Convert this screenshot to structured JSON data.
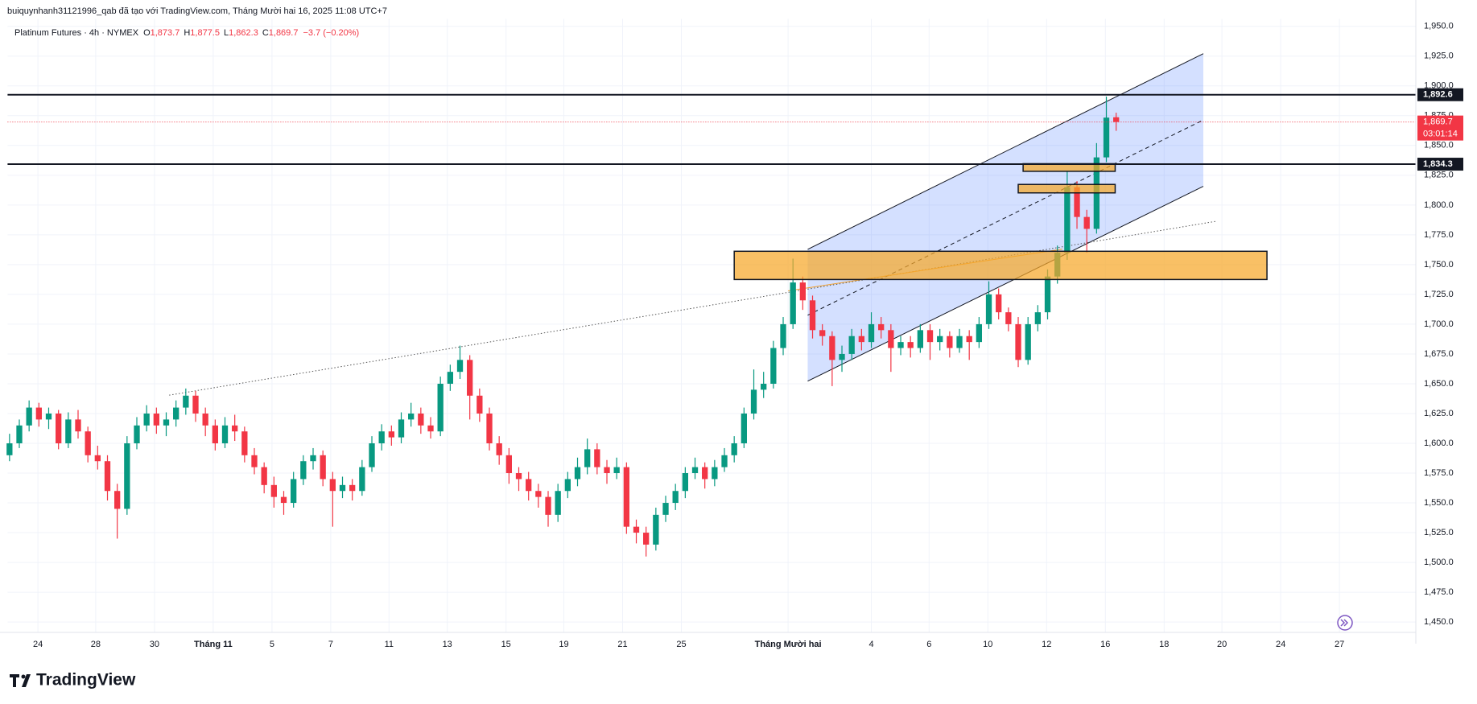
{
  "header": {
    "attribution": "buiquynhanh31121996_qab đã tạo với TradingView.com, Tháng Mười hai 16, 2025 11:08 UTC+7"
  },
  "footer": {
    "brand": "TradingView"
  },
  "chart_data": {
    "type": "candlestick",
    "legend": {
      "symbol": "Platinum Futures · 4h · NYMEX",
      "fields": [
        {
          "key": "O",
          "value": "1,873.7"
        },
        {
          "key": "H",
          "value": "1,877.5"
        },
        {
          "key": "L",
          "value": "1,862.3"
        },
        {
          "key": "C",
          "value": "1,869.7"
        }
      ],
      "change": "−3.7 (−0.20%)"
    },
    "up_color": "#089981",
    "down_color": "#f23645",
    "xlim": [
      -0.2,
      143.6
    ],
    "xticks": [
      {
        "value": 2.9,
        "label": "24"
      },
      {
        "value": 8.8,
        "label": "28"
      },
      {
        "value": 14.8,
        "label": "30"
      },
      {
        "value": 20.8,
        "label": "Tháng 11"
      },
      {
        "value": 26.8,
        "label": "5"
      },
      {
        "value": 32.8,
        "label": "7"
      },
      {
        "value": 38.75,
        "label": "11"
      },
      {
        "value": 44.7,
        "label": "13"
      },
      {
        "value": 50.7,
        "label": "15"
      },
      {
        "value": 56.6,
        "label": "19"
      },
      {
        "value": 62.6,
        "label": "21"
      },
      {
        "value": 68.6,
        "label": "25"
      },
      {
        "value": 79.5,
        "label": "Tháng Mười hai"
      },
      {
        "value": 88,
        "label": "4"
      },
      {
        "value": 93.9,
        "label": "6"
      },
      {
        "value": 99.9,
        "label": "10"
      },
      {
        "value": 105.9,
        "label": "12"
      },
      {
        "value": 111.9,
        "label": "16"
      },
      {
        "value": 117.9,
        "label": "18"
      },
      {
        "value": 123.8,
        "label": "20"
      },
      {
        "value": 129.8,
        "label": "24"
      },
      {
        "value": 135.8,
        "label": "27"
      }
    ],
    "ylim": [
      1441.3,
      1956.3
    ],
    "yticks": [
      {
        "value": 1450,
        "label": "1,450.0"
      },
      {
        "value": 1475,
        "label": "1,475.0"
      },
      {
        "value": 1500,
        "label": "1,500.0"
      },
      {
        "value": 1525,
        "label": "1,525.0"
      },
      {
        "value": 1550,
        "label": "1,550.0"
      },
      {
        "value": 1575,
        "label": "1,575.0"
      },
      {
        "value": 1600,
        "label": "1,600.0"
      },
      {
        "value": 1625,
        "label": "1,625.0"
      },
      {
        "value": 1650,
        "label": "1,650.0"
      },
      {
        "value": 1675,
        "label": "1,675.0"
      },
      {
        "value": 1700,
        "label": "1,700.0"
      },
      {
        "value": 1725,
        "label": "1,725.0"
      },
      {
        "value": 1750,
        "label": "1,750.0"
      },
      {
        "value": 1775,
        "label": "1,775.0"
      },
      {
        "value": 1800,
        "label": "1,800.0"
      },
      {
        "value": 1825,
        "label": "1,825.0"
      },
      {
        "value": 1850,
        "label": "1,850.0"
      },
      {
        "value": 1875,
        "label": "1,875.0"
      },
      {
        "value": 1900,
        "label": "1,900.0"
      },
      {
        "value": 1925,
        "label": "1,925.0"
      },
      {
        "value": 1950,
        "label": "1,950.0"
      }
    ],
    "grid": true,
    "ohlc": [
      [
        1590,
        1608,
        1585,
        1600
      ],
      [
        1600,
        1620,
        1596,
        1615
      ],
      [
        1615,
        1636,
        1610,
        1630
      ],
      [
        1630,
        1634,
        1614,
        1620
      ],
      [
        1620,
        1630,
        1612,
        1625
      ],
      [
        1625,
        1628,
        1595,
        1600
      ],
      [
        1600,
        1626,
        1596,
        1620
      ],
      [
        1620,
        1628,
        1604,
        1610
      ],
      [
        1610,
        1614,
        1584,
        1590
      ],
      [
        1590,
        1598,
        1578,
        1585
      ],
      [
        1585,
        1590,
        1552,
        1560
      ],
      [
        1560,
        1566,
        1520,
        1545
      ],
      [
        1545,
        1606,
        1540,
        1600
      ],
      [
        1600,
        1622,
        1595,
        1615
      ],
      [
        1615,
        1632,
        1610,
        1625
      ],
      [
        1625,
        1630,
        1608,
        1615
      ],
      [
        1615,
        1626,
        1606,
        1620
      ],
      [
        1620,
        1636,
        1614,
        1630
      ],
      [
        1630,
        1646,
        1624,
        1640
      ],
      [
        1640,
        1644,
        1618,
        1625
      ],
      [
        1625,
        1630,
        1606,
        1615
      ],
      [
        1615,
        1620,
        1594,
        1600
      ],
      [
        1600,
        1622,
        1596,
        1615
      ],
      [
        1615,
        1624,
        1602,
        1610
      ],
      [
        1610,
        1614,
        1584,
        1590
      ],
      [
        1590,
        1596,
        1574,
        1580
      ],
      [
        1580,
        1584,
        1558,
        1565
      ],
      [
        1565,
        1572,
        1546,
        1555
      ],
      [
        1555,
        1560,
        1540,
        1550
      ],
      [
        1550,
        1576,
        1546,
        1570
      ],
      [
        1570,
        1590,
        1565,
        1585
      ],
      [
        1585,
        1596,
        1578,
        1590
      ],
      [
        1590,
        1594,
        1564,
        1570
      ],
      [
        1570,
        1576,
        1530,
        1560
      ],
      [
        1560,
        1572,
        1554,
        1565
      ],
      [
        1565,
        1570,
        1552,
        1560
      ],
      [
        1560,
        1586,
        1556,
        1580
      ],
      [
        1580,
        1606,
        1576,
        1600
      ],
      [
        1600,
        1616,
        1594,
        1610
      ],
      [
        1610,
        1615,
        1598,
        1605
      ],
      [
        1605,
        1626,
        1600,
        1620
      ],
      [
        1620,
        1634,
        1614,
        1625
      ],
      [
        1625,
        1630,
        1608,
        1615
      ],
      [
        1615,
        1622,
        1604,
        1610
      ],
      [
        1610,
        1656,
        1606,
        1650
      ],
      [
        1650,
        1666,
        1644,
        1660
      ],
      [
        1660,
        1682,
        1654,
        1670
      ],
      [
        1670,
        1674,
        1620,
        1640
      ],
      [
        1640,
        1646,
        1618,
        1625
      ],
      [
        1625,
        1630,
        1594,
        1600
      ],
      [
        1600,
        1606,
        1582,
        1590
      ],
      [
        1590,
        1596,
        1566,
        1575
      ],
      [
        1575,
        1580,
        1560,
        1570
      ],
      [
        1570,
        1576,
        1552,
        1560
      ],
      [
        1560,
        1566,
        1546,
        1555
      ],
      [
        1555,
        1560,
        1530,
        1540
      ],
      [
        1540,
        1566,
        1534,
        1560
      ],
      [
        1560,
        1576,
        1554,
        1570
      ],
      [
        1570,
        1588,
        1564,
        1580
      ],
      [
        1580,
        1604,
        1574,
        1595
      ],
      [
        1595,
        1600,
        1574,
        1580
      ],
      [
        1580,
        1586,
        1566,
        1575
      ],
      [
        1575,
        1588,
        1570,
        1580
      ],
      [
        1580,
        1584,
        1524,
        1530
      ],
      [
        1530,
        1536,
        1516,
        1525
      ],
      [
        1525,
        1530,
        1505,
        1515
      ],
      [
        1515,
        1546,
        1510,
        1540
      ],
      [
        1540,
        1556,
        1534,
        1550
      ],
      [
        1550,
        1566,
        1544,
        1560
      ],
      [
        1560,
        1580,
        1554,
        1575
      ],
      [
        1575,
        1588,
        1570,
        1580
      ],
      [
        1580,
        1584,
        1562,
        1570
      ],
      [
        1570,
        1586,
        1564,
        1580
      ],
      [
        1580,
        1596,
        1576,
        1590
      ],
      [
        1590,
        1606,
        1584,
        1600
      ],
      [
        1600,
        1630,
        1596,
        1625
      ],
      [
        1625,
        1662,
        1620,
        1645
      ],
      [
        1645,
        1660,
        1638,
        1650
      ],
      [
        1650,
        1686,
        1646,
        1680
      ],
      [
        1680,
        1706,
        1674,
        1700
      ],
      [
        1700,
        1755,
        1696,
        1735
      ],
      [
        1735,
        1740,
        1712,
        1720
      ],
      [
        1720,
        1724,
        1688,
        1695
      ],
      [
        1695,
        1700,
        1682,
        1690
      ],
      [
        1690,
        1694,
        1648,
        1670
      ],
      [
        1670,
        1682,
        1660,
        1675
      ],
      [
        1675,
        1696,
        1670,
        1690
      ],
      [
        1690,
        1696,
        1678,
        1685
      ],
      [
        1685,
        1710,
        1680,
        1700
      ],
      [
        1700,
        1706,
        1688,
        1695
      ],
      [
        1695,
        1700,
        1660,
        1680
      ],
      [
        1680,
        1690,
        1674,
        1685
      ],
      [
        1685,
        1690,
        1672,
        1680
      ],
      [
        1680,
        1700,
        1676,
        1695
      ],
      [
        1695,
        1700,
        1670,
        1685
      ],
      [
        1685,
        1696,
        1678,
        1690
      ],
      [
        1690,
        1694,
        1672,
        1680
      ],
      [
        1680,
        1696,
        1676,
        1690
      ],
      [
        1690,
        1695,
        1670,
        1685
      ],
      [
        1685,
        1706,
        1680,
        1700
      ],
      [
        1700,
        1736,
        1696,
        1725
      ],
      [
        1725,
        1730,
        1704,
        1710
      ],
      [
        1710,
        1714,
        1694,
        1700
      ],
      [
        1700,
        1706,
        1664,
        1670
      ],
      [
        1670,
        1706,
        1666,
        1700
      ],
      [
        1700,
        1716,
        1694,
        1710
      ],
      [
        1710,
        1746,
        1704,
        1740
      ],
      [
        1740,
        1766,
        1734,
        1760
      ],
      [
        1760,
        1828,
        1754,
        1815
      ],
      [
        1815,
        1820,
        1780,
        1790
      ],
      [
        1790,
        1796,
        1760,
        1780
      ],
      [
        1780,
        1852,
        1776,
        1840
      ],
      [
        1840,
        1891,
        1836,
        1873.4
      ],
      [
        1873.7,
        1877.5,
        1862.3,
        1869.7
      ]
    ],
    "hlines": [
      {
        "value": 1892.6,
        "label": "1,892.6"
      },
      {
        "value": 1834.3,
        "label": "1,834.3"
      }
    ],
    "last_price": {
      "value": 1869.7,
      "label": "1,869.7",
      "countdown": "03:01:14",
      "color": "#f23645"
    },
    "channel": {
      "x": [
        81.5,
        121.9
      ],
      "upper": [
        1762.8,
        1927.1
      ],
      "lower": [
        1652.2,
        1815.7
      ],
      "color": "#2962ff"
    },
    "zones": [
      {
        "x": [
          74,
          128.4
        ],
        "y": [
          1737.5,
          1761.2
        ]
      },
      {
        "x": [
          103.5,
          112.9
        ],
        "y": [
          1828.3,
          1834.7
        ]
      },
      {
        "x": [
          103,
          112.9
        ],
        "y": [
          1810.2,
          1817.3
        ]
      }
    ],
    "zone_color": "#f7a72a",
    "trendlines": [
      {
        "x": [
          16.3,
          123.3
        ],
        "y": [
          1640.4,
          1786.5
        ],
        "style": "dotted",
        "color": "#555555"
      },
      {
        "x": [
          79.5,
          107.5
        ],
        "y": [
          1728,
          1763
        ],
        "style": "solid",
        "color": "#f0a030"
      }
    ]
  }
}
